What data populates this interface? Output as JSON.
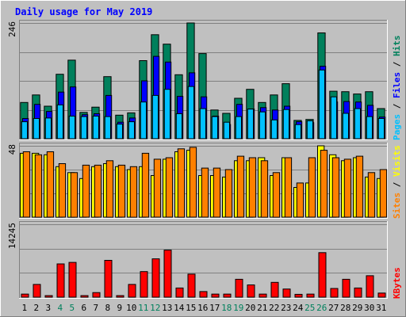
{
  "colors": {
    "background": "#c0c0c0",
    "panel": "#c0c0c0",
    "title": "#0000ff",
    "hits": "#00805c",
    "files": "#0000ff",
    "pages": "#00c0ff",
    "visits": "#ffff00",
    "sites": "#ff8000",
    "kbytes": "#ff0000",
    "weekend": "#00805c",
    "text": "#000000"
  },
  "chart_data": {
    "type": "bar",
    "title": "Daily usage for May 2019",
    "categories": [
      "1",
      "2",
      "3",
      "4",
      "5",
      "6",
      "7",
      "8",
      "9",
      "10",
      "11",
      "12",
      "13",
      "14",
      "15",
      "16",
      "17",
      "18",
      "19",
      "20",
      "21",
      "22",
      "23",
      "24",
      "25",
      "26",
      "27",
      "28",
      "29",
      "30",
      "31"
    ],
    "weekend_days": [
      "4",
      "5",
      "11",
      "12",
      "18",
      "19",
      "25",
      "26"
    ],
    "panels": [
      {
        "id": "hits_files_pages",
        "max_label": "246",
        "ylim": [
          0,
          246
        ],
        "legend": [
          {
            "label": "Pages",
            "color": "#00c0ff"
          },
          {
            "label": "Files",
            "color": "#0000ff"
          },
          {
            "label": "Hits",
            "color": "#00805c"
          }
        ],
        "series": [
          {
            "name": "Hits",
            "values": [
              77,
              93,
              69,
              137,
              167,
              56,
              67,
              132,
              50,
              55,
              166,
              221,
              201,
              136,
              246,
              181,
              61,
              54,
              86,
              105,
              77,
              93,
              117,
              39,
              41,
              225,
              101,
              100,
              95,
              100,
              64
            ]
          },
          {
            "name": "Files",
            "values": [
              43,
              73,
              58,
              99,
              110,
              51,
              53,
              92,
              35,
              44,
              123,
              175,
              163,
              90,
              140,
              89,
              48,
              30,
              73,
              63,
              66,
              61,
              69,
              36,
              34,
              154,
              78,
              79,
              78,
              71,
              46
            ]
          },
          {
            "name": "Pages",
            "values": [
              36,
              43,
              44,
              72,
              48,
              47,
              48,
              47,
              31,
              36,
              78,
              92,
              105,
              53,
              111,
              64,
              47,
              35,
              47,
              63,
              57,
              40,
              62,
              30,
              38,
              146,
              89,
              54,
              64,
              47,
              43
            ]
          }
        ]
      },
      {
        "id": "visits_sites",
        "max_label": "48",
        "ylim": [
          0,
          48
        ],
        "legend": [
          {
            "label": "Sites",
            "color": "#ff8000"
          },
          {
            "label": "Visits",
            "color": "#ffff00"
          }
        ],
        "series": [
          {
            "name": "Visits",
            "values": [
              43,
              43,
              42,
              34,
              30,
              26,
              34,
              36,
              34,
              32,
              34,
              28,
              39,
              44,
              45,
              28,
              28,
              27,
              38,
              38,
              40,
              28,
              40,
              20,
              23,
              48,
              42,
              38,
              40,
              27,
              26
            ]
          },
          {
            "name": "Sites",
            "values": [
              44,
              42,
              44,
              36,
              30,
              35,
              35,
              38,
              35,
              34,
              43,
              39,
              40,
              46,
              47,
              33,
              33,
              32,
              41,
              40,
              38,
              30,
              40,
              23,
              40,
              45,
              40,
              39,
              41,
              30,
              32
            ]
          }
        ]
      },
      {
        "id": "kbytes",
        "max_label": "14245",
        "ylim": [
          0,
          14245
        ],
        "legend": [
          {
            "label": "KBytes",
            "color": "#ff0000"
          }
        ],
        "series": [
          {
            "name": "KBytes",
            "values": [
              600,
              2500,
              300,
              6500,
              6800,
              200,
              900,
              7200,
              200,
              2500,
              5000,
              7500,
              9200,
              1800,
              4500,
              1100,
              600,
              600,
              3500,
              2400,
              600,
              2900,
              1600,
              550,
              600,
              8700,
              1700,
              3500,
              1800,
              4200,
              800
            ]
          }
        ]
      }
    ]
  }
}
